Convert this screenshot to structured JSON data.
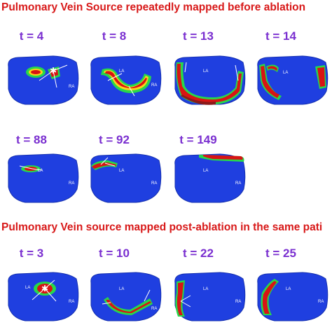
{
  "headings": {
    "pre": "Pulmonary Vein Source repeatedly mapped before ablation",
    "post": "Pulmonary Vein source mapped post-ablation in the same pati"
  },
  "colors": {
    "heading": "#d81919",
    "time_label": "#7a2fd0",
    "atrium_base": "#1f3fe0",
    "activation_core": "#d81414",
    "activation_mid": "#ffd21a",
    "activation_edge": "#28d84a"
  },
  "panels": [
    {
      "label": "t = 4",
      "la": "",
      "ra": "RA",
      "star": true
    },
    {
      "label": "t = 8",
      "la": "LA",
      "ra": "RA",
      "star": false
    },
    {
      "label": "t = 13",
      "la": "LA",
      "ra": "",
      "star": false
    },
    {
      "label": "t = 14",
      "la": "LA",
      "ra": "",
      "star": false
    },
    {
      "label": "t = 88",
      "la": "LA",
      "ra": "RA",
      "star": false
    },
    {
      "label": "t = 92",
      "la": "LA",
      "ra": "RA",
      "star": false
    },
    {
      "label": "t = 149",
      "la": "LA",
      "ra": "RA",
      "star": false
    },
    {
      "label": "t = 3",
      "la": "LA",
      "ra": "RA",
      "star": true
    },
    {
      "label": "t = 10",
      "la": "LA",
      "ra": "RA",
      "star": false
    },
    {
      "label": "t = 22",
      "la": "LA",
      "ra": "RA",
      "star": false
    },
    {
      "label": "t = 25",
      "la": "LA",
      "ra": "RA",
      "star": false
    }
  ]
}
